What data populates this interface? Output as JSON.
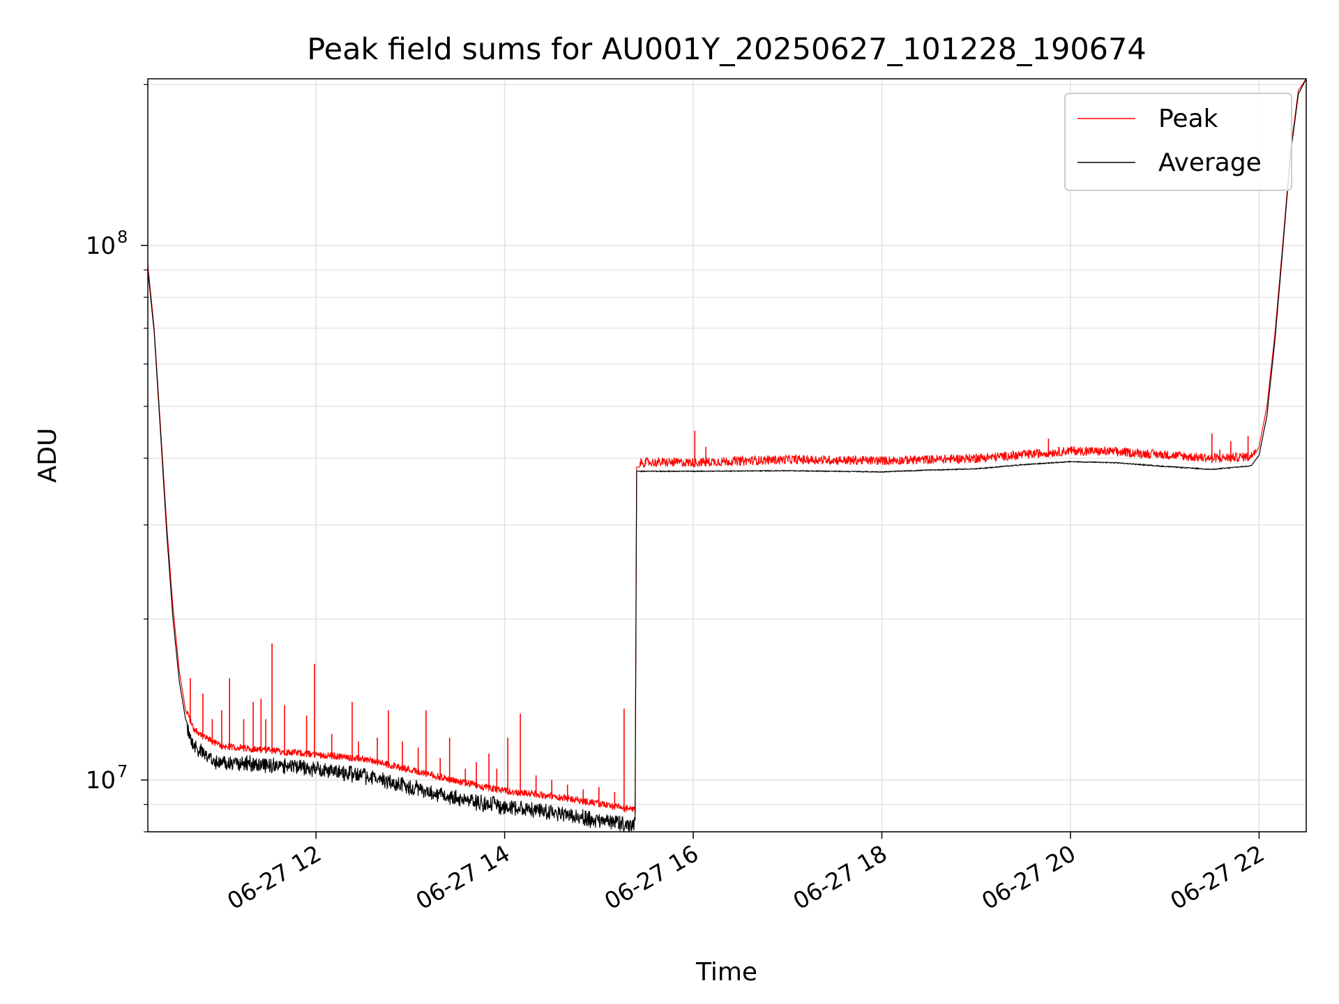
{
  "chart_data": {
    "type": "line",
    "title": "Peak field sums for AU001Y_20250627_101228_190674",
    "xlabel": "Time",
    "ylabel": "ADU",
    "yscale": "log",
    "ylim": [
      8000000,
      205000000
    ],
    "xlim": [
      "2025-06-27 10:13",
      "2025-06-27 22:30"
    ],
    "grid": true,
    "legend_position": "top-right",
    "x_ticks": [
      {
        "t": "2025-06-27 12:00",
        "label": "06-27 12"
      },
      {
        "t": "2025-06-27 14:00",
        "label": "06-27 14"
      },
      {
        "t": "2025-06-27 16:00",
        "label": "06-27 16"
      },
      {
        "t": "2025-06-27 18:00",
        "label": "06-27 18"
      },
      {
        "t": "2025-06-27 20:00",
        "label": "06-27 20"
      },
      {
        "t": "2025-06-27 22:00",
        "label": "06-27 22"
      }
    ],
    "y_major_ticks": [
      {
        "value": 10000000,
        "base": "10",
        "exp": "7"
      },
      {
        "value": 100000000,
        "base": "10",
        "exp": "8"
      }
    ],
    "y_minor_ticks": [
      8000000,
      9000000,
      20000000,
      30000000,
      40000000,
      50000000,
      60000000,
      70000000,
      80000000,
      90000000,
      200000000
    ],
    "series": [
      {
        "name": "Peak",
        "color": "#ff0000",
        "baseline": [
          [
            "2025-06-27 10:13",
            92000000
          ],
          [
            "2025-06-27 10:17",
            70000000
          ],
          [
            "2025-06-27 10:21",
            46000000
          ],
          [
            "2025-06-27 10:25",
            30000000
          ],
          [
            "2025-06-27 10:29",
            21000000
          ],
          [
            "2025-06-27 10:33",
            16000000
          ],
          [
            "2025-06-27 10:37",
            13500000
          ],
          [
            "2025-06-27 10:42",
            12300000
          ],
          [
            "2025-06-27 10:50",
            11800000
          ],
          [
            "2025-06-27 11:00",
            11400000
          ],
          [
            "2025-06-27 11:30",
            11200000
          ],
          [
            "2025-06-27 12:00",
            11000000
          ],
          [
            "2025-06-27 12:30",
            10800000
          ],
          [
            "2025-06-27 13:00",
            10300000
          ],
          [
            "2025-06-27 13:30",
            9800000
          ],
          [
            "2025-06-27 14:00",
            9400000
          ],
          [
            "2025-06-27 14:30",
            9200000
          ],
          [
            "2025-06-27 15:00",
            8900000
          ],
          [
            "2025-06-27 15:23",
            8650000
          ],
          [
            "2025-06-27 15:24",
            38500000
          ],
          [
            "2025-06-27 16:00",
            38500000
          ],
          [
            "2025-06-27 17:00",
            39000000
          ],
          [
            "2025-06-27 18:00",
            38800000
          ],
          [
            "2025-06-27 19:00",
            39200000
          ],
          [
            "2025-06-27 19:30",
            39800000
          ],
          [
            "2025-06-27 20:00",
            40500000
          ],
          [
            "2025-06-27 20:30",
            40300000
          ],
          [
            "2025-06-27 21:00",
            39800000
          ],
          [
            "2025-06-27 21:30",
            39200000
          ],
          [
            "2025-06-27 21:55",
            39500000
          ],
          [
            "2025-06-27 22:00",
            42000000
          ],
          [
            "2025-06-27 22:05",
            50000000
          ],
          [
            "2025-06-27 22:10",
            68000000
          ],
          [
            "2025-06-27 22:15",
            100000000
          ],
          [
            "2025-06-27 22:20",
            150000000
          ],
          [
            "2025-06-27 22:25",
            195000000
          ],
          [
            "2025-06-27 22:30",
            205000000
          ]
        ],
        "spikes": [
          [
            "2025-06-27 10:40",
            15500000
          ],
          [
            "2025-06-27 10:48",
            14500000
          ],
          [
            "2025-06-27 10:54",
            13000000
          ],
          [
            "2025-06-27 11:00",
            13500000
          ],
          [
            "2025-06-27 11:05",
            15500000
          ],
          [
            "2025-06-27 11:14",
            13000000
          ],
          [
            "2025-06-27 11:20",
            14000000
          ],
          [
            "2025-06-27 11:25",
            14200000
          ],
          [
            "2025-06-27 11:28",
            13000000
          ],
          [
            "2025-06-27 11:32",
            18000000
          ],
          [
            "2025-06-27 11:40",
            13800000
          ],
          [
            "2025-06-27 11:54",
            13200000
          ],
          [
            "2025-06-27 11:59",
            16500000
          ],
          [
            "2025-06-27 12:10",
            12200000
          ],
          [
            "2025-06-27 12:23",
            14000000
          ],
          [
            "2025-06-27 12:27",
            11800000
          ],
          [
            "2025-06-27 12:39",
            12000000
          ],
          [
            "2025-06-27 12:46",
            13500000
          ],
          [
            "2025-06-27 12:55",
            11800000
          ],
          [
            "2025-06-27 13:05",
            11500000
          ],
          [
            "2025-06-27 13:10",
            13500000
          ],
          [
            "2025-06-27 13:19",
            11000000
          ],
          [
            "2025-06-27 13:25",
            12000000
          ],
          [
            "2025-06-27 13:35",
            10500000
          ],
          [
            "2025-06-27 13:42",
            10800000
          ],
          [
            "2025-06-27 13:50",
            11200000
          ],
          [
            "2025-06-27 13:55",
            10500000
          ],
          [
            "2025-06-27 14:02",
            12000000
          ],
          [
            "2025-06-27 14:10",
            13300000
          ],
          [
            "2025-06-27 14:20",
            10200000
          ],
          [
            "2025-06-27 14:30",
            10000000
          ],
          [
            "2025-06-27 14:40",
            9800000
          ],
          [
            "2025-06-27 14:50",
            9600000
          ],
          [
            "2025-06-27 15:00",
            9700000
          ],
          [
            "2025-06-27 15:10",
            9500000
          ],
          [
            "2025-06-27 15:16",
            13600000
          ],
          [
            "2025-06-27 16:01",
            45000000
          ],
          [
            "2025-06-27 16:08",
            42000000
          ],
          [
            "2025-06-27 16:30",
            40000000
          ],
          [
            "2025-06-27 17:10",
            40500000
          ],
          [
            "2025-06-27 17:40",
            40000000
          ],
          [
            "2025-06-27 18:20",
            40200000
          ],
          [
            "2025-06-27 19:00",
            40800000
          ],
          [
            "2025-06-27 19:25",
            41000000
          ],
          [
            "2025-06-27 19:46",
            43500000
          ],
          [
            "2025-06-27 20:10",
            42000000
          ],
          [
            "2025-06-27 20:30",
            41500000
          ],
          [
            "2025-06-27 20:50",
            41000000
          ],
          [
            "2025-06-27 21:15",
            40500000
          ],
          [
            "2025-06-27 21:30",
            44500000
          ],
          [
            "2025-06-27 21:35",
            41500000
          ],
          [
            "2025-06-27 21:42",
            43000000
          ],
          [
            "2025-06-27 21:53",
            44000000
          ]
        ]
      },
      {
        "name": "Average",
        "color": "#000000",
        "values": [
          [
            "2025-06-27 10:13",
            90000000
          ],
          [
            "2025-06-27 10:17",
            69000000
          ],
          [
            "2025-06-27 10:21",
            45000000
          ],
          [
            "2025-06-27 10:25",
            29000000
          ],
          [
            "2025-06-27 10:29",
            20000000
          ],
          [
            "2025-06-27 10:33",
            15300000
          ],
          [
            "2025-06-27 10:37",
            13000000
          ],
          [
            "2025-06-27 10:42",
            11900000
          ],
          [
            "2025-06-27 10:50",
            11300000
          ],
          [
            "2025-06-27 11:00",
            11000000
          ],
          [
            "2025-06-27 11:30",
            10900000
          ],
          [
            "2025-06-27 12:00",
            10700000
          ],
          [
            "2025-06-27 12:30",
            10400000
          ],
          [
            "2025-06-27 13:00",
            9900000
          ],
          [
            "2025-06-27 13:30",
            9400000
          ],
          [
            "2025-06-27 14:00",
            9100000
          ],
          [
            "2025-06-27 14:30",
            8900000
          ],
          [
            "2025-06-27 15:00",
            8550000
          ],
          [
            "2025-06-27 15:23",
            8400000
          ],
          [
            "2025-06-27 15:24",
            37800000
          ],
          [
            "2025-06-27 16:00",
            37800000
          ],
          [
            "2025-06-27 17:00",
            37900000
          ],
          [
            "2025-06-27 18:00",
            37700000
          ],
          [
            "2025-06-27 18:30",
            38000000
          ],
          [
            "2025-06-27 19:00",
            38200000
          ],
          [
            "2025-06-27 19:30",
            38900000
          ],
          [
            "2025-06-27 20:00",
            39400000
          ],
          [
            "2025-06-27 20:30",
            39200000
          ],
          [
            "2025-06-27 21:00",
            38600000
          ],
          [
            "2025-06-27 21:30",
            38100000
          ],
          [
            "2025-06-27 21:55",
            38700000
          ],
          [
            "2025-06-27 22:00",
            40500000
          ],
          [
            "2025-06-27 22:05",
            48000000
          ],
          [
            "2025-06-27 22:10",
            66000000
          ],
          [
            "2025-06-27 22:15",
            98000000
          ],
          [
            "2025-06-27 22:20",
            148000000
          ],
          [
            "2025-06-27 22:25",
            192000000
          ],
          [
            "2025-06-27 22:30",
            205000000
          ]
        ]
      }
    ]
  }
}
